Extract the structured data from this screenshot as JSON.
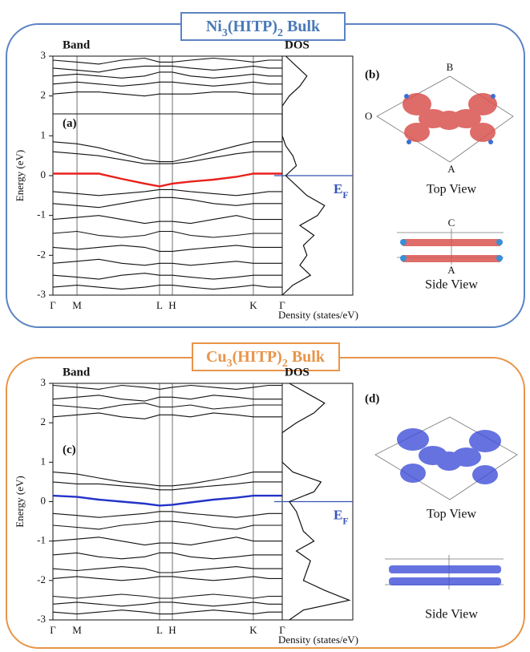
{
  "panels": [
    {
      "title_parts": [
        "Ni",
        "3",
        "(HITP)",
        "2",
        " Bulk"
      ],
      "structure_label": "(b)",
      "top_view": "Top View",
      "side_view": "Side View",
      "axis_letters": {
        "b": "B",
        "o": "O",
        "a_top": "A",
        "c": "C",
        "a_side": "A"
      }
    },
    {
      "title_parts": [
        "Cu",
        "3",
        "(HITP)",
        "2",
        " Bulk"
      ],
      "structure_label": "(d)",
      "top_view": "Top View",
      "side_view": "Side View"
    }
  ],
  "chart_data": [
    {
      "type": "line",
      "title": "Band",
      "panel_label": "(a)",
      "ylabel": "Energy (eV)",
      "xlim": [
        0,
        1
      ],
      "xticks": [
        {
          "value": 0,
          "label": "Γ"
        },
        {
          "value": 0.105,
          "label": "M"
        },
        {
          "value": 0.465,
          "label": "L"
        },
        {
          "value": 0.521,
          "label": "H"
        },
        {
          "value": 0.874,
          "label": "K"
        },
        {
          "value": 1,
          "label": "Γ"
        }
      ],
      "ylim": [
        -3,
        3
      ],
      "yticks": [
        -3,
        -2,
        -1,
        0,
        1,
        2,
        3
      ],
      "x": [
        0,
        0.105,
        0.2,
        0.3,
        0.4,
        0.465,
        0.521,
        0.6,
        0.7,
        0.8,
        0.874,
        0.94,
        1
      ],
      "series": [
        {
          "color": "#111111",
          "values": [
            2.9,
            2.85,
            2.8,
            2.9,
            2.95,
            2.85,
            2.85,
            2.9,
            2.95,
            2.9,
            2.85,
            2.9,
            2.9
          ]
        },
        {
          "color": "#111111",
          "values": [
            2.7,
            2.65,
            2.6,
            2.7,
            2.75,
            2.75,
            2.75,
            2.7,
            2.65,
            2.7,
            2.75,
            2.7,
            2.7
          ]
        },
        {
          "color": "#111111",
          "values": [
            2.5,
            2.55,
            2.5,
            2.45,
            2.5,
            2.6,
            2.6,
            2.5,
            2.45,
            2.5,
            2.55,
            2.5,
            2.5
          ]
        },
        {
          "color": "#111111",
          "values": [
            2.3,
            2.35,
            2.3,
            2.25,
            2.3,
            2.35,
            2.35,
            2.3,
            2.25,
            2.3,
            2.35,
            2.3,
            2.3
          ]
        },
        {
          "color": "#111111",
          "values": [
            2.05,
            2.1,
            2.1,
            2.05,
            2.0,
            2.05,
            2.05,
            2.05,
            2.1,
            2.1,
            2.05,
            2.05,
            2.05
          ]
        },
        {
          "color": "#111111",
          "values": [
            1.55,
            1.55,
            1.55,
            1.55,
            1.55,
            1.55,
            1.55,
            1.55,
            1.55,
            1.55,
            1.55,
            1.55,
            1.55
          ]
        },
        {
          "color": "#111111",
          "values": [
            0.85,
            0.8,
            0.7,
            0.55,
            0.4,
            0.35,
            0.35,
            0.45,
            0.6,
            0.75,
            0.85,
            0.85,
            0.85
          ]
        },
        {
          "color": "#111111",
          "values": [
            0.6,
            0.55,
            0.5,
            0.4,
            0.3,
            0.3,
            0.3,
            0.35,
            0.45,
            0.55,
            0.6,
            0.6,
            0.6
          ]
        },
        {
          "color": "#111111",
          "values": [
            -0.4,
            -0.45,
            -0.5,
            -0.45,
            -0.4,
            -0.35,
            -0.35,
            -0.4,
            -0.45,
            -0.5,
            -0.45,
            -0.4,
            -0.4
          ]
        },
        {
          "color": "#111111",
          "values": [
            -0.7,
            -0.75,
            -0.8,
            -0.7,
            -0.6,
            -0.55,
            -0.55,
            -0.6,
            -0.7,
            -0.75,
            -0.7,
            -0.7,
            -0.7
          ]
        },
        {
          "color": "#111111",
          "values": [
            -1.1,
            -1.05,
            -1.0,
            -1.1,
            -1.2,
            -1.15,
            -1.15,
            -1.2,
            -1.1,
            -1.0,
            -1.1,
            -1.1,
            -1.1
          ]
        },
        {
          "color": "#111111",
          "values": [
            -1.45,
            -1.4,
            -1.5,
            -1.55,
            -1.5,
            -1.4,
            -1.4,
            -1.5,
            -1.55,
            -1.5,
            -1.45,
            -1.45,
            -1.45
          ]
        },
        {
          "color": "#111111",
          "values": [
            -1.8,
            -1.85,
            -1.8,
            -1.75,
            -1.8,
            -1.9,
            -1.9,
            -1.85,
            -1.8,
            -1.75,
            -1.8,
            -1.8,
            -1.8
          ]
        },
        {
          "color": "#111111",
          "values": [
            -2.2,
            -2.15,
            -2.1,
            -2.2,
            -2.25,
            -2.2,
            -2.2,
            -2.25,
            -2.2,
            -2.15,
            -2.2,
            -2.2,
            -2.2
          ]
        },
        {
          "color": "#111111",
          "values": [
            -2.5,
            -2.55,
            -2.6,
            -2.5,
            -2.45,
            -2.5,
            -2.5,
            -2.55,
            -2.6,
            -2.55,
            -2.5,
            -2.5,
            -2.5
          ]
        },
        {
          "color": "#111111",
          "values": [
            -2.8,
            -2.75,
            -2.8,
            -2.85,
            -2.8,
            -2.75,
            -2.75,
            -2.8,
            -2.85,
            -2.8,
            -2.75,
            -2.8,
            -2.8
          ]
        },
        {
          "color": "#e8211c",
          "values": [
            0.05,
            0.05,
            0.05,
            -0.08,
            -0.2,
            -0.27,
            -0.2,
            -0.15,
            -0.1,
            -0.03,
            0.05,
            0.05,
            0.05
          ]
        }
      ]
    },
    {
      "type": "dos",
      "title": "DOS",
      "xlabel": "Density (states/eV)",
      "ef_parts": [
        "E",
        "F"
      ],
      "fermi_level": 0,
      "fermi_color": "#3553b8",
      "xlim": [
        0,
        1
      ],
      "ylim": [
        -3,
        3
      ],
      "color": "#111111",
      "energies": [
        -3,
        -2.75,
        -2.5,
        -2.25,
        -2,
        -1.75,
        -1.5,
        -1.25,
        -1,
        -0.75,
        -0.5,
        -0.25,
        0,
        0.25,
        0.5,
        0.75,
        1,
        1.25,
        1.5,
        1.75,
        2,
        2.25,
        2.5,
        2.75,
        3
      ],
      "values": [
        0,
        0.15,
        0.4,
        0.25,
        0.35,
        0.3,
        0.45,
        0.25,
        0.5,
        0.6,
        0.35,
        0.2,
        0.05,
        0.2,
        0.15,
        0.05,
        0,
        0,
        0,
        0,
        0.1,
        0.25,
        0.35,
        0.2,
        0.05
      ]
    },
    {
      "type": "line",
      "title": "Band",
      "panel_label": "(c)",
      "ylabel": "Energy (eV)",
      "xlim": [
        0,
        1
      ],
      "xticks": [
        {
          "value": 0,
          "label": "Γ"
        },
        {
          "value": 0.105,
          "label": "M"
        },
        {
          "value": 0.465,
          "label": "L"
        },
        {
          "value": 0.521,
          "label": "H"
        },
        {
          "value": 0.874,
          "label": "K"
        },
        {
          "value": 1,
          "label": "Γ"
        }
      ],
      "ylim": [
        -3,
        3
      ],
      "yticks": [
        -3,
        -2,
        -1,
        0,
        1,
        2,
        3
      ],
      "x": [
        0,
        0.105,
        0.2,
        0.3,
        0.4,
        0.465,
        0.521,
        0.6,
        0.7,
        0.8,
        0.874,
        0.94,
        1
      ],
      "series": [
        {
          "color": "#111111",
          "values": [
            2.95,
            2.9,
            2.85,
            2.95,
            2.9,
            2.85,
            2.9,
            2.95,
            2.9,
            2.85,
            2.9,
            2.95,
            2.95
          ]
        },
        {
          "color": "#111111",
          "values": [
            2.6,
            2.65,
            2.7,
            2.6,
            2.55,
            2.65,
            2.65,
            2.6,
            2.7,
            2.65,
            2.6,
            2.6,
            2.6
          ]
        },
        {
          "color": "#111111",
          "values": [
            2.45,
            2.4,
            2.35,
            2.45,
            2.5,
            2.4,
            2.4,
            2.45,
            2.35,
            2.4,
            2.45,
            2.45,
            2.45
          ]
        },
        {
          "color": "#111111",
          "values": [
            2.15,
            2.2,
            2.25,
            2.15,
            2.1,
            2.2,
            2.2,
            2.15,
            2.25,
            2.2,
            2.15,
            2.15,
            2.15
          ]
        },
        {
          "color": "#111111",
          "values": [
            0.75,
            0.7,
            0.6,
            0.5,
            0.45,
            0.4,
            0.4,
            0.45,
            0.55,
            0.65,
            0.75,
            0.75,
            0.75
          ]
        },
        {
          "color": "#111111",
          "values": [
            0.5,
            0.45,
            0.45,
            0.4,
            0.35,
            0.3,
            0.3,
            0.35,
            0.4,
            0.45,
            0.5,
            0.5,
            0.5
          ]
        },
        {
          "color": "#111111",
          "values": [
            -0.3,
            -0.35,
            -0.4,
            -0.35,
            -0.3,
            -0.25,
            -0.25,
            -0.3,
            -0.35,
            -0.4,
            -0.35,
            -0.3,
            -0.3
          ]
        },
        {
          "color": "#111111",
          "values": [
            -0.6,
            -0.65,
            -0.7,
            -0.6,
            -0.55,
            -0.5,
            -0.5,
            -0.55,
            -0.65,
            -0.7,
            -0.6,
            -0.6,
            -0.6
          ]
        },
        {
          "color": "#111111",
          "values": [
            -1.0,
            -0.95,
            -0.9,
            -1.0,
            -1.1,
            -1.05,
            -1.05,
            -1.1,
            -1.0,
            -0.9,
            -1.0,
            -1.0,
            -1.0
          ]
        },
        {
          "color": "#111111",
          "values": [
            -1.35,
            -1.3,
            -1.4,
            -1.45,
            -1.4,
            -1.3,
            -1.3,
            -1.4,
            -1.45,
            -1.4,
            -1.35,
            -1.35,
            -1.35
          ]
        },
        {
          "color": "#111111",
          "values": [
            -1.7,
            -1.75,
            -1.7,
            -1.65,
            -1.7,
            -1.8,
            -1.8,
            -1.75,
            -1.7,
            -1.65,
            -1.7,
            -1.7,
            -1.7
          ]
        },
        {
          "color": "#111111",
          "values": [
            -1.95,
            -1.9,
            -1.95,
            -2.0,
            -1.95,
            -1.9,
            -1.9,
            -1.95,
            -2.0,
            -1.95,
            -1.9,
            -1.95,
            -1.95
          ]
        },
        {
          "color": "#111111",
          "values": [
            -2.4,
            -2.45,
            -2.4,
            -2.35,
            -2.4,
            -2.45,
            -2.45,
            -2.4,
            -2.35,
            -2.4,
            -2.45,
            -2.4,
            -2.4
          ]
        },
        {
          "color": "#111111",
          "values": [
            -2.6,
            -2.55,
            -2.6,
            -2.65,
            -2.6,
            -2.55,
            -2.55,
            -2.6,
            -2.65,
            -2.6,
            -2.55,
            -2.6,
            -2.6
          ]
        },
        {
          "color": "#111111",
          "values": [
            -2.8,
            -2.85,
            -2.8,
            -2.75,
            -2.8,
            -2.85,
            -2.85,
            -2.8,
            -2.75,
            -2.8,
            -2.85,
            -2.8,
            -2.8
          ]
        },
        {
          "color": "#2433c8",
          "values": [
            0.15,
            0.12,
            0.05,
            0,
            -0.05,
            -0.1,
            -0.08,
            -0.02,
            0.05,
            0.1,
            0.15,
            0.15,
            0.15
          ]
        }
      ]
    },
    {
      "type": "dos",
      "title": "DOS",
      "xlabel": "Density (states/eV)",
      "ef_parts": [
        "E",
        "F"
      ],
      "fermi_level": 0,
      "fermi_color": "#3553b8",
      "xlim": [
        0,
        1
      ],
      "ylim": [
        -3,
        3
      ],
      "color": "#111111",
      "energies": [
        -3,
        -2.75,
        -2.5,
        -2.25,
        -2,
        -1.75,
        -1.5,
        -1.25,
        -1,
        -0.75,
        -0.5,
        -0.25,
        0,
        0.25,
        0.5,
        0.75,
        1,
        1.25,
        1.5,
        1.75,
        2,
        2.25,
        2.5,
        2.75,
        3
      ],
      "values": [
        0.1,
        0.3,
        0.95,
        0.6,
        0.3,
        0.35,
        0.4,
        0.2,
        0.45,
        0.3,
        0.25,
        0.2,
        0.1,
        0.45,
        0.55,
        0.15,
        0,
        0,
        0,
        0,
        0.2,
        0.45,
        0.6,
        0.35,
        0.1
      ]
    }
  ]
}
